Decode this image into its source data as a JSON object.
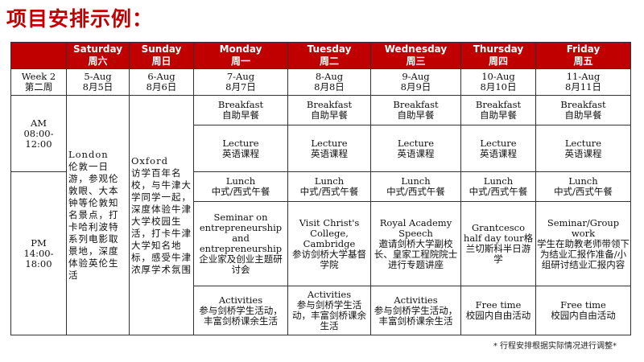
{
  "title": "项目安排示例：",
  "colors": {
    "header_bg": "#c00000",
    "title": "#c00000"
  },
  "days": [
    {
      "en": "Saturday",
      "cn": "周六",
      "date_en": "5-Aug",
      "date_cn": "8月5日"
    },
    {
      "en": "Sunday",
      "cn": "周日",
      "date_en": "6-Aug",
      "date_cn": "8月6日"
    },
    {
      "en": "Monday",
      "cn": "周一",
      "date_en": "7-Aug",
      "date_cn": "8月7日"
    },
    {
      "en": "Tuesday",
      "cn": "周二",
      "date_en": "8-Aug",
      "date_cn": "8月8日"
    },
    {
      "en": "Wednesday",
      "cn": "周三",
      "date_en": "9-Aug",
      "date_cn": "8月9日"
    },
    {
      "en": "Thursday",
      "cn": "周四",
      "date_en": "10-Aug",
      "date_cn": "8月10日"
    },
    {
      "en": "Friday",
      "cn": "周五",
      "date_en": "11-Aug",
      "date_cn": "8月11日"
    }
  ],
  "week": {
    "en": "Week 2",
    "cn": "第二周"
  },
  "am": {
    "label": "AM",
    "time": "08:00-12:00"
  },
  "pm": {
    "label": "PM",
    "time": "14:00-18:00"
  },
  "saturday_all": {
    "en": "London",
    "cn": "伦敦一日游，参观伦敦眼、大本钟等伦敦知名景点，打卡哈利波特系列电影取景地，深度体验英伦生活"
  },
  "sunday_all": {
    "en": "Oxford",
    "cn": "访学百年名校，与牛津大学同学一起，深度体验牛津大学校园生活，打卡牛津大学知名地标，感受牛津浓厚学术氛围"
  },
  "rows": {
    "breakfast": [
      {
        "en": "Breakfast",
        "cn": "自助早餐"
      },
      {
        "en": "Breakfast",
        "cn": "自助早餐"
      },
      {
        "en": "Breakfast",
        "cn": "自助早餐"
      },
      {
        "en": "Breakfast",
        "cn": "自助早餐"
      },
      {
        "en": "Breakfast",
        "cn": "自助早餐"
      }
    ],
    "lecture": [
      {
        "en": "Lecture",
        "cn": "英语课程"
      },
      {
        "en": "Lecture",
        "cn": "英语课程"
      },
      {
        "en": "Lecture",
        "cn": "英语课程"
      },
      {
        "en": "Lecture",
        "cn": "英语课程"
      },
      {
        "en": "Lecture",
        "cn": "英语课程"
      }
    ],
    "lunch": [
      {
        "en": "Lunch",
        "cn": "中式/西式午餐"
      },
      {
        "en": "Lunch",
        "cn": "中式/西式午餐"
      },
      {
        "en": "Lunch",
        "cn": "中式/西式午餐"
      },
      {
        "en": "Lunch",
        "cn": "中式/西式午餐"
      },
      {
        "en": "Lunch",
        "cn": "中式/西式午餐"
      }
    ],
    "afternoon": [
      {
        "en": "Seminar on entrepreneurship and entrepreneurship",
        "cn": "企业家及创业主题研讨会"
      },
      {
        "en": "Visit Christ's College, Cambridge",
        "cn": "参访剑桥大学基督学院"
      },
      {
        "en": "Royal Academy Speech",
        "cn": "邀请剑桥大学副校长、皇家工程院院士进行专题讲座"
      },
      {
        "en": "Grantcesco half day tour",
        "cn": "格兰切斯科半日游学"
      },
      {
        "en": "Seminar/Group work",
        "cn": "学生在助教老师带领下为结业汇报作准备/小组研讨结业汇报内容"
      }
    ],
    "activities": [
      {
        "en": "Activities",
        "cn": "参与剑桥学生活动，丰富剑桥课余生活"
      },
      {
        "en": "Activities",
        "cn": "参与剑桥学生活动，丰富剑桥课余生活"
      },
      {
        "en": "Activities",
        "cn": "参与剑桥学生活动，丰富剑桥课余生活"
      },
      {
        "en": "Free time",
        "cn": "校园内自由活动"
      },
      {
        "en": "Free time",
        "cn": "校园内自由活动"
      }
    ]
  },
  "footnote": "* 行程安排根据实际情况进行调整*"
}
